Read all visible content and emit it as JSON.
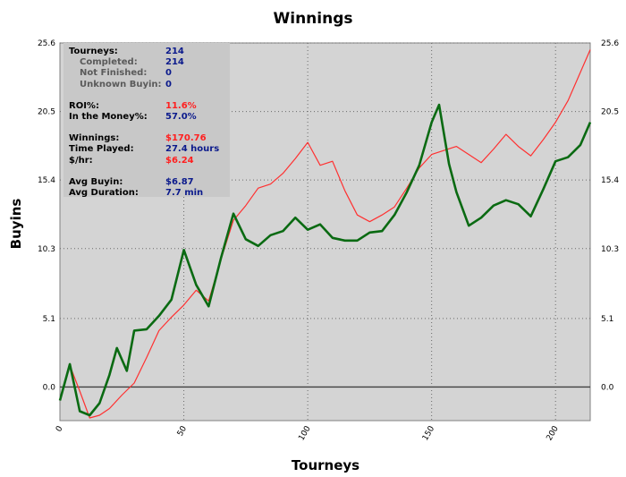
{
  "chart_data": {
    "type": "line",
    "title": "Winnings",
    "xlabel": "Tourneys",
    "ylabel": "Buyins",
    "xlim": [
      0,
      214
    ],
    "ylim": [
      -2.5,
      25.6
    ],
    "x_ticks": [
      0,
      50,
      100,
      150,
      200
    ],
    "y_ticks": [
      0.0,
      5.1,
      10.3,
      15.4,
      20.5,
      25.6
    ],
    "y_tick_labels": [
      "0.0",
      "5.1",
      "10.3",
      "15.4",
      "20.5",
      "25.6"
    ],
    "grid": true,
    "series": [
      {
        "color": "#ff3030",
        "x": [
          0,
          4,
          8,
          12,
          16,
          20,
          25,
          30,
          35,
          40,
          45,
          50,
          55,
          60,
          65,
          70,
          75,
          80,
          85,
          90,
          95,
          100,
          105,
          110,
          115,
          120,
          125,
          130,
          135,
          140,
          145,
          150,
          155,
          160,
          165,
          170,
          175,
          180,
          185,
          190,
          195,
          200,
          205,
          210,
          214
        ],
        "y": [
          -0.9,
          1.6,
          -0.3,
          -2.3,
          -2.1,
          -1.6,
          -0.6,
          0.3,
          2.2,
          4.2,
          5.2,
          6.1,
          7.2,
          6.4,
          9.5,
          12.4,
          13.5,
          14.8,
          15.1,
          15.9,
          17.0,
          18.2,
          16.5,
          16.8,
          14.6,
          12.8,
          12.3,
          12.8,
          13.4,
          14.8,
          16.3,
          17.3,
          17.6,
          17.9,
          17.3,
          16.7,
          17.7,
          18.8,
          17.9,
          17.2,
          18.4,
          19.7,
          21.3,
          23.4,
          25.1
        ]
      },
      {
        "color": "#0a6a12",
        "x": [
          0,
          4,
          8,
          12,
          16,
          20,
          23,
          27,
          30,
          35,
          40,
          45,
          50,
          55,
          60,
          65,
          70,
          75,
          80,
          85,
          90,
          95,
          100,
          105,
          110,
          115,
          120,
          125,
          130,
          135,
          140,
          145,
          150,
          153,
          157,
          160,
          165,
          170,
          175,
          180,
          185,
          190,
          195,
          200,
          205,
          210,
          214
        ],
        "y": [
          -1.0,
          1.7,
          -1.8,
          -2.1,
          -1.2,
          0.9,
          2.9,
          1.2,
          4.2,
          4.3,
          5.3,
          6.5,
          10.2,
          7.6,
          6.0,
          9.6,
          12.9,
          11.0,
          10.5,
          11.3,
          11.6,
          12.6,
          11.7,
          12.1,
          11.1,
          10.9,
          10.9,
          11.5,
          11.6,
          12.8,
          14.5,
          16.5,
          19.7,
          21.0,
          16.6,
          14.5,
          12.0,
          12.6,
          13.5,
          13.9,
          13.6,
          12.7,
          14.7,
          16.8,
          17.1,
          18.0,
          19.7
        ]
      }
    ]
  },
  "stats": {
    "tourneys_label": "Tourneys:",
    "tourneys_value": "214",
    "completed_label": "Completed:",
    "completed_value": "214",
    "not_finished_label": "Not Finished:",
    "not_finished_value": "0",
    "unknown_buyin_label": "Unknown Buyin:",
    "unknown_buyin_value": "0",
    "roi_label": "ROI%:",
    "roi_value": "11.6%",
    "itm_label": "In the Money%:",
    "itm_value": "57.0%",
    "winnings_label": "Winnings:",
    "winnings_value": "$170.76",
    "time_played_label": "Time Played:",
    "time_played_value": "27.4 hours",
    "per_hour_label": "$/hr:",
    "per_hour_value": "$6.24",
    "avg_buyin_label": "Avg Buyin:",
    "avg_buyin_value": "$6.87",
    "avg_duration_label": "Avg Duration:",
    "avg_duration_value": "7.7 min"
  },
  "colors": {
    "plot_background": "#d4d4d4",
    "stats_background": "#c8c8c8",
    "stat_value": "#0b1a8c",
    "stat_value_highlight": "#ff1f1f"
  }
}
